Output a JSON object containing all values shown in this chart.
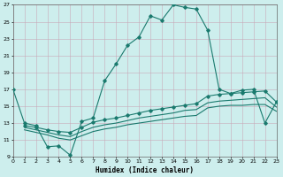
{
  "xlabel": "Humidex (Indice chaleur)",
  "bg_color": "#cdeeed",
  "grid_color": "#c8a8b8",
  "line_color": "#1a7a6e",
  "xlim": [
    0,
    23
  ],
  "ylim": [
    9,
    27
  ],
  "xticks": [
    0,
    1,
    2,
    3,
    4,
    5,
    6,
    7,
    8,
    9,
    10,
    11,
    12,
    13,
    14,
    15,
    16,
    17,
    18,
    19,
    20,
    21,
    22,
    23
  ],
  "yticks": [
    9,
    11,
    13,
    15,
    17,
    19,
    21,
    23,
    25,
    27
  ],
  "curve1_x": [
    0,
    1,
    2,
    3,
    4,
    5,
    6,
    7,
    8,
    9,
    10,
    11,
    12,
    13,
    14,
    15,
    16,
    17,
    18,
    19,
    20,
    21,
    22,
    23
  ],
  "curve1_y": [
    17,
    13,
    12.7,
    10.2,
    10.3,
    9.2,
    13.2,
    13.6,
    18.0,
    20.0,
    22.2,
    23.2,
    25.7,
    25.2,
    27.0,
    26.7,
    26.5,
    24.0,
    17.0,
    16.5,
    16.9,
    17.0,
    13.0,
    15.5
  ],
  "curve2_x": [
    1,
    2,
    3,
    4,
    5,
    6,
    7,
    8,
    9,
    10,
    11,
    12,
    13,
    14,
    15,
    16,
    17,
    18,
    19,
    20,
    21,
    22,
    23
  ],
  "curve2_y": [
    12.7,
    12.5,
    12.2,
    12.0,
    11.9,
    12.5,
    13.1,
    13.4,
    13.6,
    13.9,
    14.2,
    14.5,
    14.7,
    14.9,
    15.1,
    15.3,
    16.2,
    16.4,
    16.5,
    16.6,
    16.7,
    16.8,
    15.5
  ],
  "curve3_x": [
    1,
    2,
    3,
    4,
    5,
    6,
    7,
    8,
    9,
    10,
    11,
    12,
    13,
    14,
    15,
    16,
    17,
    18,
    19,
    20,
    21,
    22,
    23
  ],
  "curve3_y": [
    12.5,
    12.2,
    11.9,
    11.6,
    11.4,
    12.0,
    12.5,
    12.8,
    13.0,
    13.3,
    13.6,
    13.8,
    14.0,
    14.2,
    14.5,
    14.6,
    15.4,
    15.6,
    15.7,
    15.8,
    15.9,
    16.0,
    14.9
  ],
  "curve4_x": [
    1,
    2,
    3,
    4,
    5,
    6,
    7,
    8,
    9,
    10,
    11,
    12,
    13,
    14,
    15,
    16,
    17,
    18,
    19,
    20,
    21,
    22,
    23
  ],
  "curve4_y": [
    12.2,
    11.9,
    11.6,
    11.2,
    11.0,
    11.5,
    12.0,
    12.3,
    12.5,
    12.8,
    13.0,
    13.2,
    13.4,
    13.6,
    13.8,
    13.9,
    14.8,
    15.0,
    15.1,
    15.1,
    15.2,
    15.2,
    14.4
  ]
}
